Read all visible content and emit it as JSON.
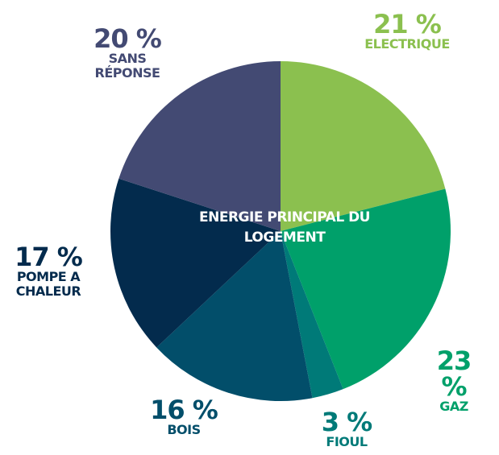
{
  "chart_data": {
    "type": "pie",
    "title": "ENERGIE PRINCIPAL DU LOGEMENT",
    "categories": [
      "ELECTRIQUE",
      "GAZ",
      "FIOUL",
      "BOIS",
      "POMPE A CHALEUR",
      "SANS RÉPONSE"
    ],
    "values": [
      21,
      23,
      3,
      16,
      17,
      20
    ],
    "value_labels": [
      "21 %",
      "23 %",
      "3 %",
      "16 %",
      "17 %",
      "20 %"
    ],
    "colors": [
      "#8bc04f",
      "#00a06a",
      "#007a78",
      "#024e6a",
      "#032b4d",
      "#434a73"
    ]
  }
}
